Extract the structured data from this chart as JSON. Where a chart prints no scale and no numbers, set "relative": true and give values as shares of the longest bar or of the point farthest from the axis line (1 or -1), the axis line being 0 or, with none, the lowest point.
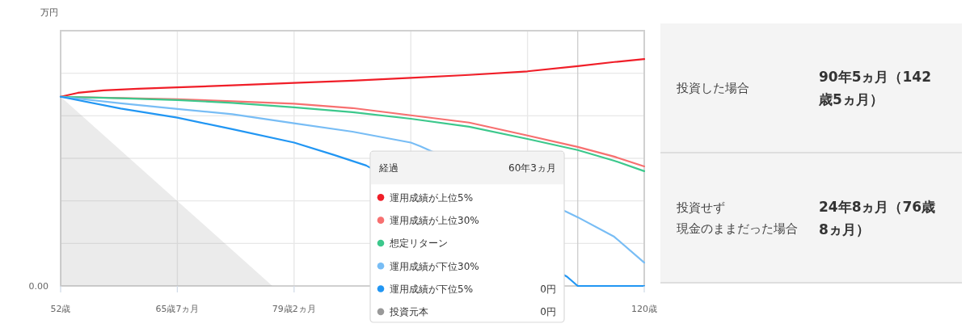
{
  "chart_data": [
    {
      "type": "line",
      "ylabel": "万円",
      "legend_title": "経過",
      "relative": true,
      "xlim": [
        52,
        120
      ],
      "xticks": [
        {
          "value": 52,
          "label": "52歳"
        },
        {
          "value": 65.6,
          "label": "65歳7ヵ月"
        },
        {
          "value": 79.2,
          "label": "79歳2ヵ月"
        },
        {
          "value": 92.8,
          "label": null
        },
        {
          "value": 106.4,
          "label": null
        },
        {
          "value": 120,
          "label": "120歳"
        }
      ],
      "annotations": [
        "0.00",
        "0円",
        "0円"
      ],
      "grid": true,
      "legend": "bottom right",
      "ref_lines": [
        {
          "axis": "x",
          "value": 112.25,
          "label": "60年3ヵ月",
          "color": "#cccccc"
        }
      ],
      "series": [
        {
          "name": "運用成績が上位5%",
          "color": "#f01e28",
          "x": [
            52,
            54,
            57,
            61,
            65.6,
            72,
            79.2,
            86,
            92.8,
            99.6,
            106.4,
            112.25,
            116.5,
            120
          ],
          "values": [
            0.834,
            0.851,
            0.862,
            0.869,
            0.875,
            0.884,
            0.895,
            0.905,
            0.917,
            0.93,
            0.946,
            0.969,
            0.987,
            1
          ]
        },
        {
          "name": "運用成績が上位30%",
          "color": "#f77070",
          "x": [
            52,
            59,
            65.6,
            72,
            79.2,
            86,
            92.8,
            99.6,
            106.4,
            112.25,
            116.5,
            120
          ],
          "values": [
            0.834,
            0.828,
            0.823,
            0.814,
            0.803,
            0.784,
            0.752,
            0.72,
            0.663,
            0.613,
            0.57,
            0.527
          ]
        },
        {
          "name": "想定リターン",
          "color": "#3cc88c",
          "x": [
            52,
            59,
            65.6,
            72,
            79.2,
            86,
            92.8,
            99.6,
            106.4,
            112.25,
            116.5,
            120
          ],
          "values": [
            0.834,
            0.827,
            0.819,
            0.807,
            0.787,
            0.766,
            0.737,
            0.702,
            0.648,
            0.599,
            0.552,
            0.506
          ]
        },
        {
          "name": "運用成績が下位30%",
          "color": "#78bdf5",
          "x": [
            52,
            59,
            65.6,
            72,
            79.2,
            86,
            92.8,
            93.9,
            111,
            112.25,
            116.5,
            120
          ],
          "values": [
            0.834,
            0.805,
            0.78,
            0.757,
            0.717,
            0.68,
            0.632,
            0.616,
            0.326,
            0.303,
            0.217,
            0.103
          ]
        },
        {
          "name": "運用成績が下位5%",
          "color": "#2196f3",
          "x": [
            52,
            59,
            65.6,
            72,
            79.2,
            83.8,
            87.6,
            111,
            112.25,
            116.5,
            120
          ],
          "values": [
            0.834,
            0.782,
            0.742,
            0.691,
            0.632,
            0.578,
            0.531,
            0.041,
            0,
            0,
            0
          ]
        },
        {
          "name": "投資元本",
          "type": "area",
          "color": "#999999",
          "x": [
            52,
            76.67
          ],
          "values": [
            0.834,
            0
          ]
        }
      ]
    },
    {
      "type": "other",
      "annotations": [
        "投資した場合",
        "90年5ヵ月（142歳5ヵ月）"
      ]
    },
    {
      "type": "other",
      "annotations": [
        "投資せず",
        "現金のままだった場合",
        "24年8ヵ月（76歳8ヵ月）"
      ]
    }
  ]
}
